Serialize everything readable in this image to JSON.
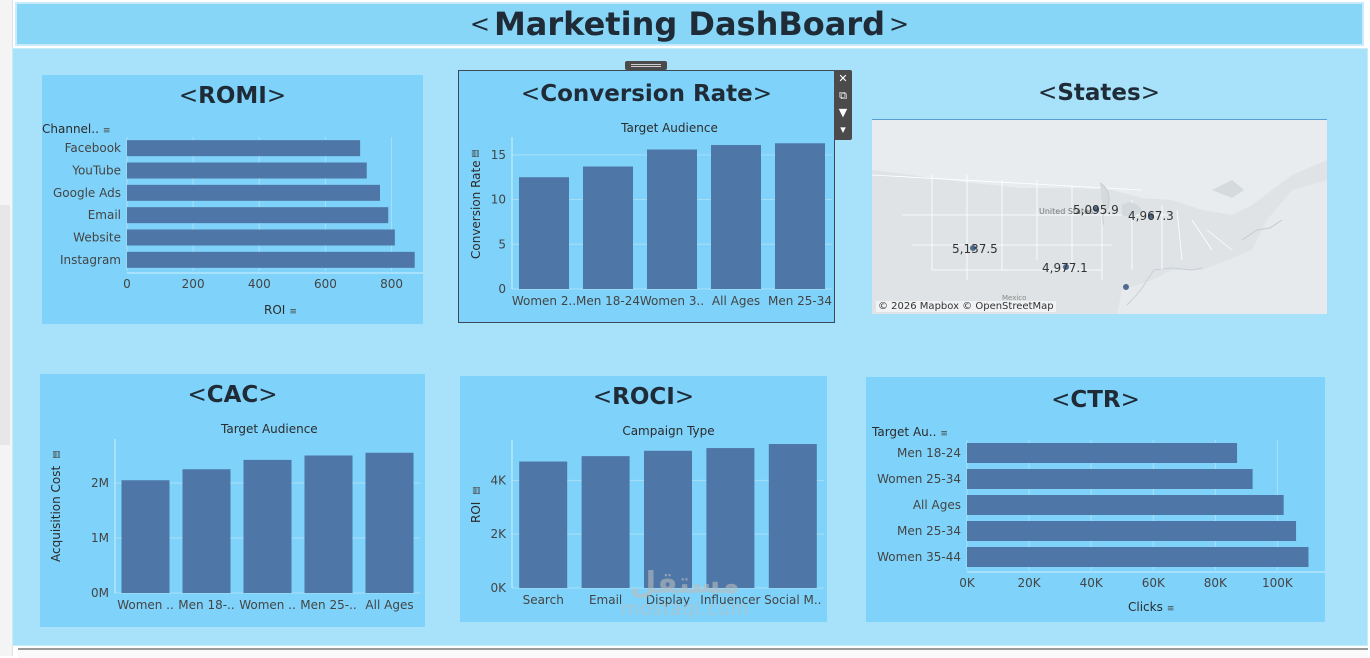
{
  "dashboard": {
    "title": "Marketing DashBoard",
    "bracket_left": "<",
    "bracket_right": ">"
  },
  "colors": {
    "bar": "#4e76a6",
    "panel": "#7fd3fa",
    "canvas": "#a8e1fa",
    "header": "#87d6f8",
    "title_text": "#1f2b36"
  },
  "romi": {
    "title": "ROMI",
    "row_header": "Channel..",
    "axis_title": "ROI",
    "chart_data": {
      "type": "bar",
      "orientation": "horizontal",
      "categories": [
        "Facebook",
        "YouTube",
        "Google Ads",
        "Email",
        "Website",
        "Instagram"
      ],
      "values": [
        705,
        725,
        765,
        790,
        810,
        870
      ],
      "xticks": [
        "0",
        "200",
        "400",
        "600",
        "800"
      ],
      "xlim": [
        0,
        880
      ],
      "grid": true,
      "xlabel": "ROI"
    }
  },
  "conversion": {
    "title": "Conversion Rate",
    "header": "Target Audience",
    "axis_title": "Conversion Rate",
    "chart_data": {
      "type": "bar",
      "categories": [
        "Women 2..",
        "Men 18-24",
        "Women 3..",
        "All Ages",
        "Men 25-34"
      ],
      "values": [
        12.5,
        13.7,
        15.6,
        16.1,
        16.3
      ],
      "yticks": [
        "0",
        "5",
        "10",
        "15"
      ],
      "ylim": [
        0,
        17
      ],
      "grid": true,
      "ylabel": "Conversion Rate"
    }
  },
  "states": {
    "title": "States",
    "map_labels": [
      "United States",
      "Mexico"
    ],
    "credit": "© 2026 Mapbox © OpenStreetMap",
    "points": [
      {
        "label": "5,137.5",
        "place": "southwest"
      },
      {
        "label": "5,095.9",
        "place": "great lakes"
      },
      {
        "label": "4,967.3",
        "place": "northeast"
      },
      {
        "label": "4,977.1",
        "place": "south central"
      },
      {
        "label": "",
        "place": "florida"
      }
    ]
  },
  "cac": {
    "title": "CAC",
    "header": "Target Audience",
    "axis_title": "Acquisition Cost",
    "chart_data": {
      "type": "bar",
      "categories": [
        "Women ..",
        "Men 18-..",
        "Women ..",
        "Men 25-..",
        "All Ages"
      ],
      "values": [
        2.05,
        2.25,
        2.42,
        2.5,
        2.55
      ],
      "yticks": [
        "0M",
        "1M",
        "2M"
      ],
      "ylim": [
        0,
        2.8
      ],
      "grid": true,
      "ylabel": "Acquisition Cost"
    }
  },
  "roci": {
    "title": "ROCI",
    "header": "Campaign Type",
    "axis_title": "ROI",
    "chart_data": {
      "type": "bar",
      "categories": [
        "Search",
        "Email",
        "Display",
        "Influencer",
        "Social M.."
      ],
      "values": [
        4.7,
        4.9,
        5.1,
        5.2,
        5.35
      ],
      "yticks": [
        "0K",
        "2K",
        "4K"
      ],
      "ylim": [
        0,
        5.5
      ],
      "grid": true,
      "ylabel": "ROI"
    }
  },
  "ctr": {
    "title": "CTR",
    "row_header": "Target Au..",
    "axis_title": "Clicks",
    "chart_data": {
      "type": "bar",
      "orientation": "horizontal",
      "categories": [
        "Men 18-24",
        "Women 25-34",
        "All Ages",
        "Men 25-34",
        "Women 35-44"
      ],
      "values": [
        87000,
        92000,
        102000,
        106000,
        110000
      ],
      "xticks": [
        "0K",
        "20K",
        "40K",
        "60K",
        "80K",
        "100K"
      ],
      "xlim": [
        0,
        115000
      ],
      "grid": true,
      "xlabel": "Clicks"
    }
  },
  "toolbar": {
    "close": "✕",
    "open": "⧉",
    "filter": "▼",
    "more": "▾"
  },
  "watermark": {
    "arabic": "مستقل",
    "latin": "mostaql.com"
  }
}
